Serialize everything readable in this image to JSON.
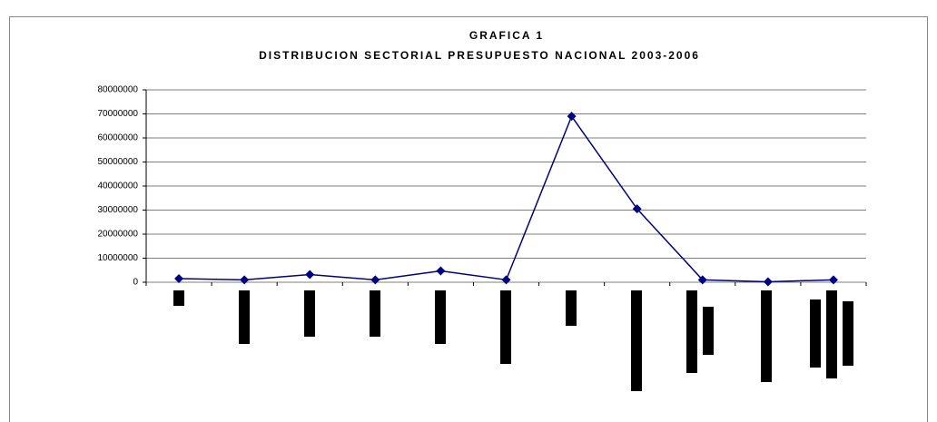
{
  "chart_data": {
    "type": "line",
    "title": "GRAFICA 1",
    "subtitle": "DISTRIBUCION SECTORIAL PRESUPUESTO NACIONAL 2003-2006",
    "categories": [
      null,
      null,
      null,
      null,
      null,
      null,
      null,
      null,
      null,
      null,
      null
    ],
    "values": [
      1500000,
      1000000,
      3200000,
      1000000,
      4700000,
      1000000,
      69000000,
      30500000,
      1000000,
      200000,
      1000000
    ],
    "color": "#000080",
    "ylim": [
      0,
      80000000
    ],
    "yticks": [
      0,
      10000000,
      20000000,
      30000000,
      40000000,
      50000000,
      60000000,
      70000000,
      80000000
    ],
    "grid": true
  }
}
